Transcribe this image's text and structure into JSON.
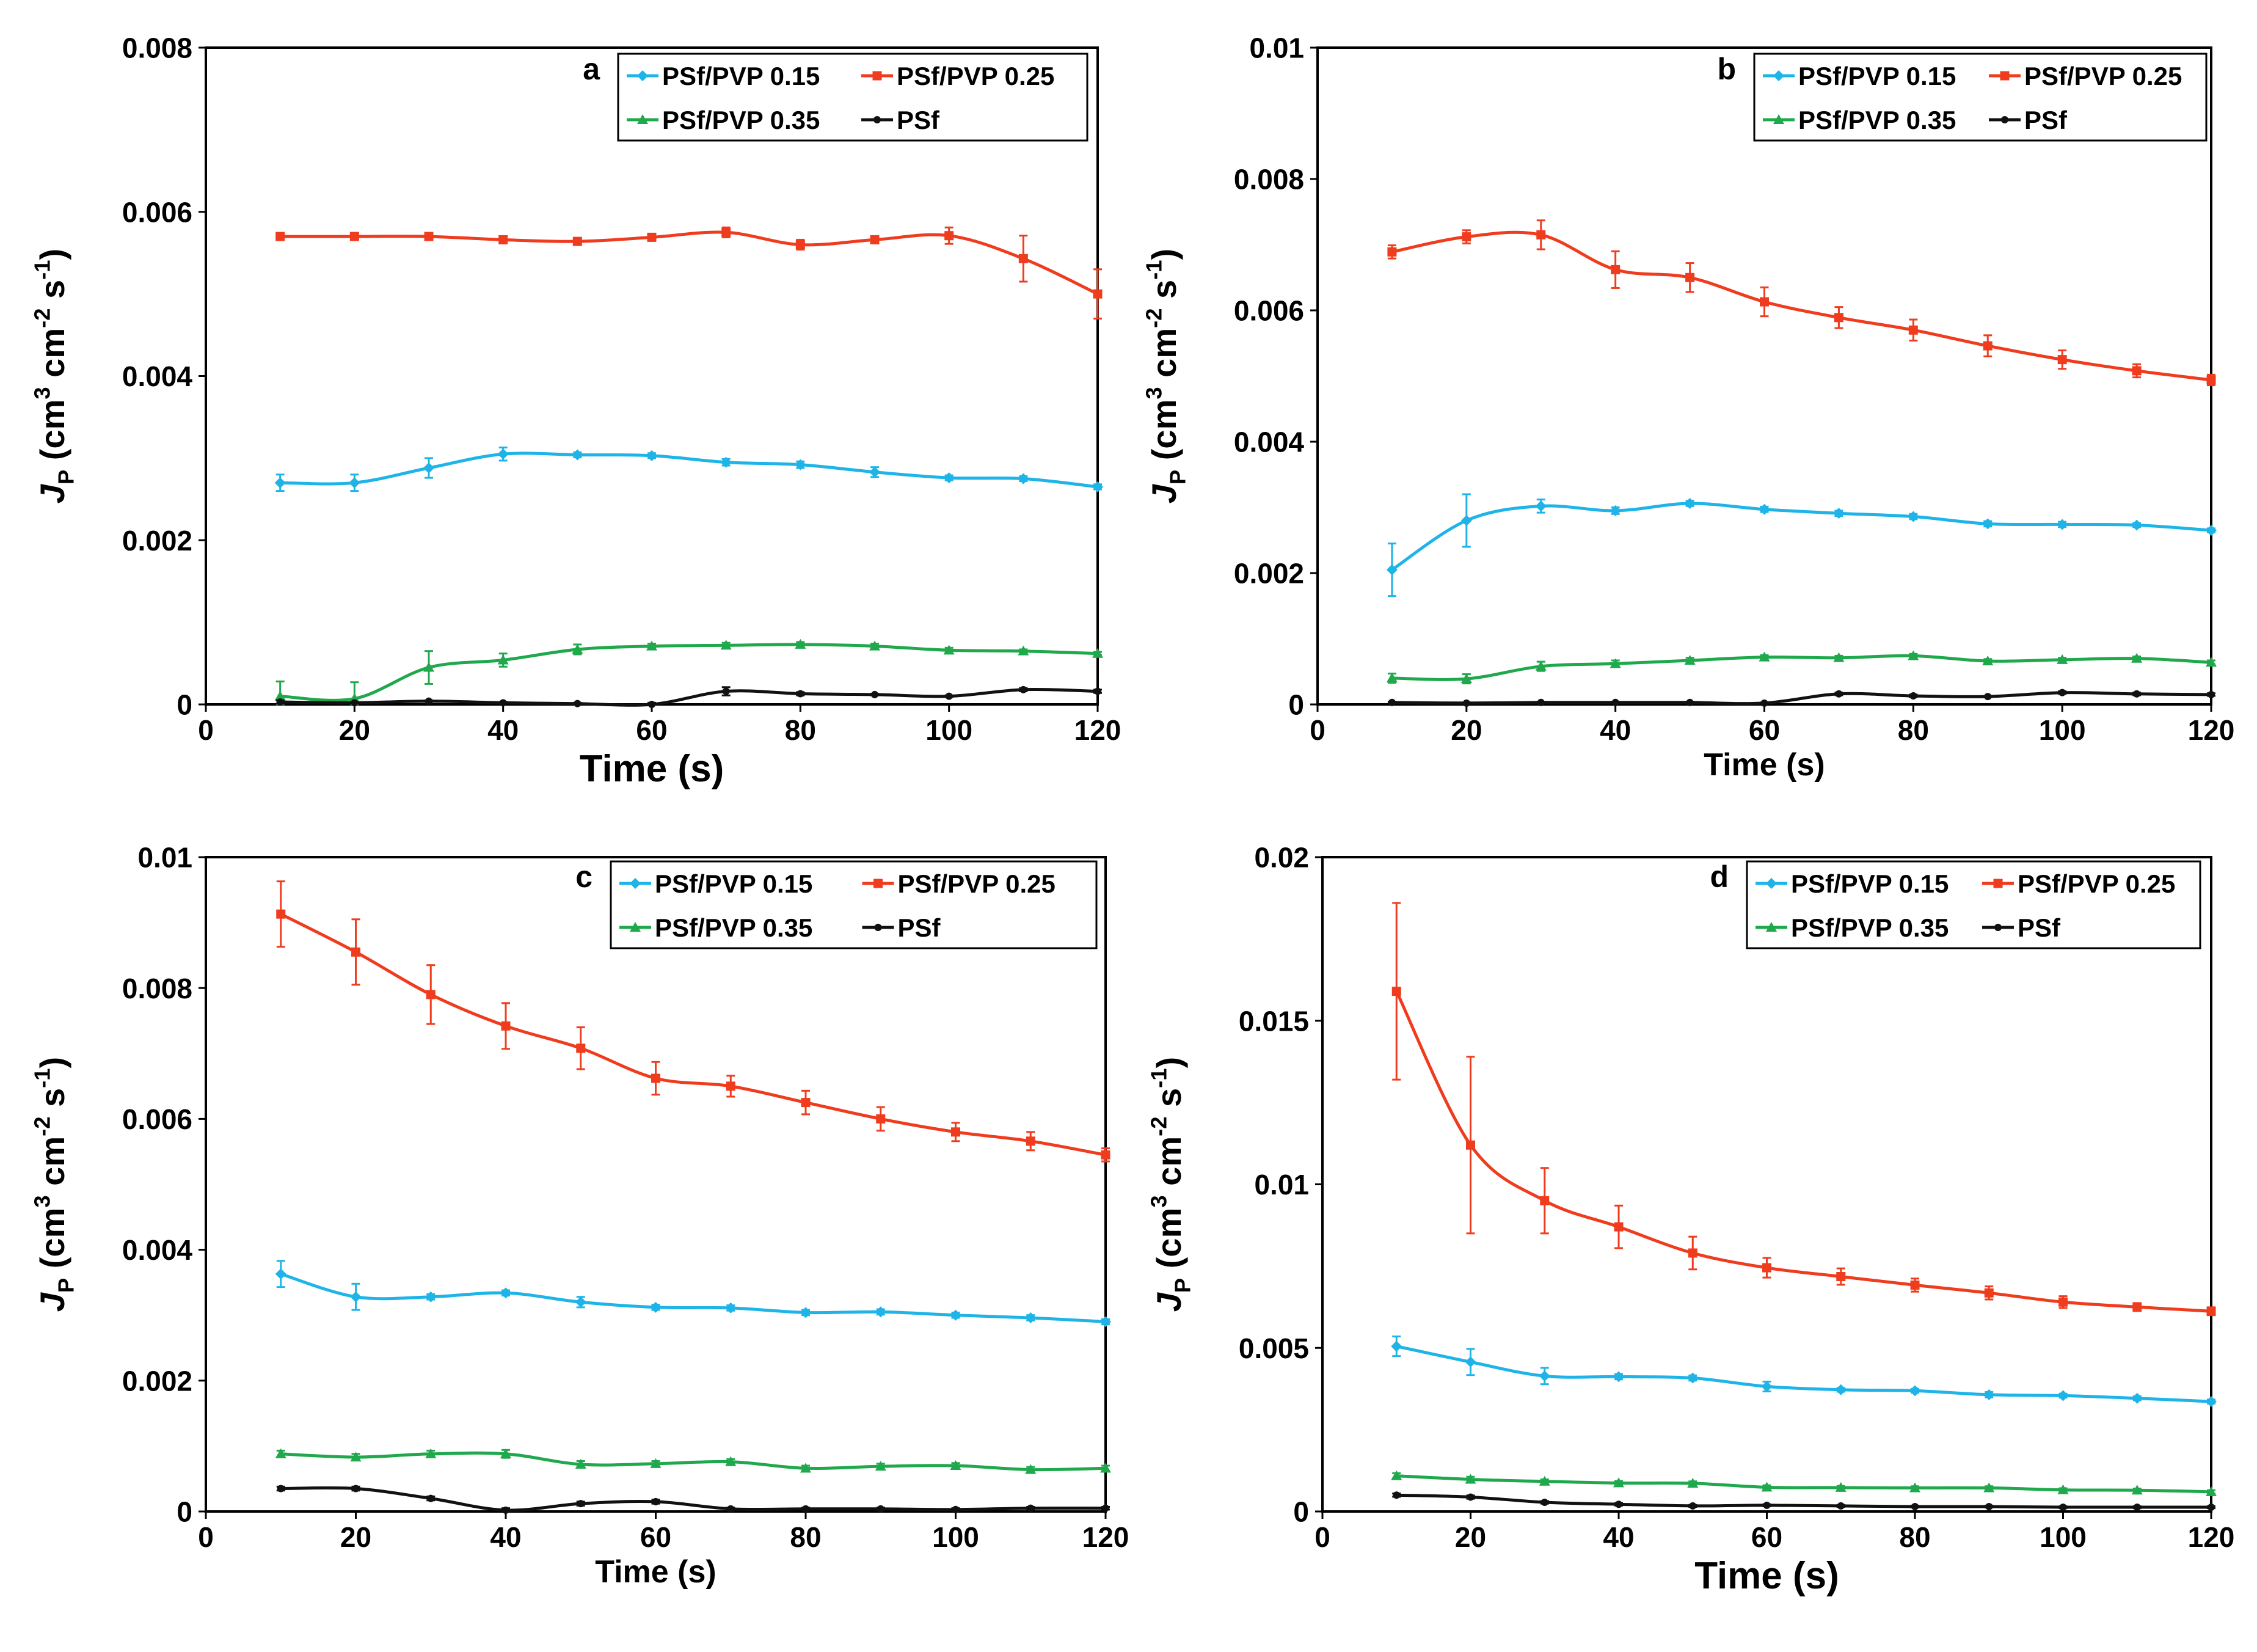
{
  "figure": {
    "panels": [
      {
        "panel_label": "a"
      },
      {
        "panel_label": "b"
      },
      {
        "panel_label": "c"
      },
      {
        "panel_label": "d"
      }
    ]
  },
  "colors": {
    "PSf/PVP 0.15": "#1eb4e8",
    "PSf/PVP 0.25": "#f03c1e",
    "PSf/PVP 0.35": "#20a84c",
    "PSf": "#111111"
  },
  "chart_data": [
    {
      "type": "line",
      "panel_label": "a",
      "xlabel": "Time (s)",
      "ylabel": "J_P (cm^3 cm^-2 s^-1)",
      "xlim": [
        0,
        120
      ],
      "ylim": [
        0,
        0.008
      ],
      "xticks": [
        "0",
        "20",
        "40",
        "60",
        "80",
        "100",
        "120"
      ],
      "yticks": [
        "0",
        "0.002",
        "0.004",
        "0.006",
        "0.008"
      ],
      "legend": [
        "PSf/PVP 0.15",
        "PSf/PVP 0.25",
        "PSf/PVP 0.35",
        "PSf"
      ],
      "legend_position": "top-right",
      "grid": false,
      "x": [
        10,
        20,
        30,
        40,
        50,
        60,
        70,
        80,
        90,
        100,
        110,
        120
      ],
      "series": [
        {
          "name": "PSf/PVP 0.15",
          "values": [
            0.0027,
            0.0027,
            0.00288,
            0.00305,
            0.00304,
            0.00303,
            0.00295,
            0.00292,
            0.00283,
            0.00276,
            0.00275,
            0.00265
          ],
          "errors": [
            0.0001,
            0.0001,
            0.00012,
            8e-05,
            3e-05,
            3e-05,
            4e-05,
            4e-05,
            6e-05,
            3e-05,
            3e-05,
            3e-05
          ]
        },
        {
          "name": "PSf/PVP 0.25",
          "values": [
            0.0057,
            0.0057,
            0.0057,
            0.00566,
            0.00564,
            0.00569,
            0.00575,
            0.0056,
            0.00566,
            0.00571,
            0.00543,
            0.005
          ],
          "errors": [
            3e-05,
            3e-05,
            3e-05,
            3e-05,
            3e-05,
            4e-05,
            6e-05,
            6e-05,
            3e-05,
            0.0001,
            0.00028,
            0.0003
          ]
        },
        {
          "name": "PSf/PVP 0.35",
          "values": [
            0.0001,
            7e-05,
            0.00045,
            0.00054,
            0.00067,
            0.00071,
            0.00072,
            0.00073,
            0.00071,
            0.00066,
            0.00065,
            0.00062
          ],
          "errors": [
            0.00018,
            0.0002,
            0.0002,
            8e-05,
            6e-05,
            3e-05,
            3e-05,
            3e-05,
            3e-05,
            3e-05,
            2e-05,
            2e-05
          ]
        },
        {
          "name": "PSf",
          "values": [
            3e-05,
            2e-05,
            4e-05,
            2e-05,
            1e-05,
            0.0,
            0.00016,
            0.00013,
            0.00012,
            0.0001,
            0.00018,
            0.00016
          ],
          "errors": [
            2e-05,
            1e-05,
            1e-05,
            1e-05,
            1e-05,
            2e-05,
            5e-05,
            2e-05,
            1e-05,
            1e-05,
            2e-05,
            2e-05
          ]
        }
      ]
    },
    {
      "type": "line",
      "panel_label": "b",
      "xlabel": "Time (s)",
      "ylabel": "J_P (cm^3 cm^-2 s^-1)",
      "xlim": [
        0,
        120
      ],
      "ylim": [
        0,
        0.01
      ],
      "xticks": [
        "0",
        "20",
        "40",
        "60",
        "80",
        "100",
        "120"
      ],
      "yticks": [
        "0",
        "0.002",
        "0.004",
        "0.006",
        "0.008",
        "0.01"
      ],
      "legend": [
        "PSf/PVP 0.15",
        "PSf/PVP 0.25",
        "PSf/PVP 0.35",
        "PSf"
      ],
      "legend_position": "top-right",
      "grid": false,
      "x": [
        10,
        20,
        30,
        40,
        50,
        60,
        70,
        80,
        90,
        100,
        110,
        120
      ],
      "series": [
        {
          "name": "PSf/PVP 0.15",
          "values": [
            0.00205,
            0.0028,
            0.00302,
            0.00295,
            0.00306,
            0.00297,
            0.00291,
            0.00286,
            0.00275,
            0.00274,
            0.00273,
            0.00265
          ],
          "errors": [
            0.0004,
            0.0004,
            0.0001,
            5e-05,
            4e-05,
            4e-05,
            4e-05,
            4e-05,
            4e-05,
            4e-05,
            3e-05,
            3e-05
          ]
        },
        {
          "name": "PSf/PVP 0.25",
          "values": [
            0.00689,
            0.00712,
            0.00715,
            0.00662,
            0.0065,
            0.00613,
            0.00589,
            0.0057,
            0.00546,
            0.00525,
            0.00508,
            0.00494
          ],
          "errors": [
            0.0001,
            0.0001,
            0.00022,
            0.00028,
            0.00022,
            0.00022,
            0.00016,
            0.00016,
            0.00016,
            0.00014,
            0.0001,
            8e-05
          ]
        },
        {
          "name": "PSf/PVP 0.35",
          "values": [
            0.0004,
            0.00039,
            0.00058,
            0.00062,
            0.00067,
            0.00072,
            0.00071,
            0.00074,
            0.00066,
            0.00068,
            0.0007,
            0.00064
          ],
          "errors": [
            7e-05,
            7e-05,
            7e-05,
            5e-05,
            4e-05,
            3e-05,
            3e-05,
            3e-05,
            3e-05,
            3e-05,
            3e-05,
            3e-05
          ]
        },
        {
          "name": "PSf",
          "values": [
            3e-05,
            2e-05,
            3e-05,
            3e-05,
            3e-05,
            2e-05,
            0.00016,
            0.00013,
            0.00012,
            0.00018,
            0.00016,
            0.00015
          ],
          "errors": [
            1e-05,
            1e-05,
            1e-05,
            1e-05,
            1e-05,
            1e-05,
            2e-05,
            2e-05,
            1e-05,
            2e-05,
            2e-05,
            2e-05
          ]
        }
      ]
    },
    {
      "type": "line",
      "panel_label": "c",
      "xlabel": "Time (s)",
      "ylabel": "J_P (cm^3 cm^-2 s^-1)",
      "xlim": [
        0,
        120
      ],
      "ylim": [
        0,
        0.01
      ],
      "xticks": [
        "0",
        "20",
        "40",
        "60",
        "80",
        "100",
        "120"
      ],
      "yticks": [
        "0",
        "0.002",
        "0.004",
        "0.006",
        "0.008",
        "0.01"
      ],
      "legend": [
        "PSf/PVP 0.15",
        "PSf/PVP 0.25",
        "PSf/PVP 0.35",
        "PSf"
      ],
      "legend_position": "top-right",
      "grid": false,
      "x": [
        10,
        20,
        30,
        40,
        50,
        60,
        70,
        80,
        90,
        100,
        110,
        120
      ],
      "series": [
        {
          "name": "PSf/PVP 0.15",
          "values": [
            0.00363,
            0.00328,
            0.00328,
            0.00334,
            0.0032,
            0.00312,
            0.00311,
            0.00304,
            0.00305,
            0.003,
            0.00296,
            0.0029
          ],
          "errors": [
            0.0002,
            0.0002,
            4e-05,
            4e-05,
            8e-05,
            4e-05,
            4e-05,
            4e-05,
            4e-05,
            4e-05,
            4e-05,
            4e-05
          ]
        },
        {
          "name": "PSf/PVP 0.25",
          "values": [
            0.00913,
            0.00855,
            0.0079,
            0.00742,
            0.00708,
            0.00662,
            0.0065,
            0.00625,
            0.006,
            0.0058,
            0.00566,
            0.00545
          ],
          "errors": [
            0.0005,
            0.0005,
            0.00045,
            0.00035,
            0.00032,
            0.00025,
            0.00016,
            0.00018,
            0.00018,
            0.00014,
            0.00014,
            0.0001
          ]
        },
        {
          "name": "PSf/PVP 0.35",
          "values": [
            0.00088,
            0.00083,
            0.00088,
            0.00088,
            0.00072,
            0.00073,
            0.00076,
            0.00066,
            0.00069,
            0.0007,
            0.00064,
            0.00066
          ],
          "errors": [
            5e-05,
            5e-05,
            5e-05,
            6e-05,
            5e-05,
            4e-05,
            4e-05,
            4e-05,
            4e-05,
            4e-05,
            4e-05,
            4e-05
          ]
        },
        {
          "name": "PSf",
          "values": [
            0.00035,
            0.00035,
            0.0002,
            2e-05,
            0.00012,
            0.00015,
            4e-05,
            4e-05,
            4e-05,
            3e-05,
            5e-05,
            5e-05
          ],
          "errors": [
            3e-05,
            3e-05,
            3e-05,
            3e-05,
            3e-05,
            3e-05,
            2e-05,
            2e-05,
            2e-05,
            2e-05,
            2e-05,
            2e-05
          ]
        }
      ]
    },
    {
      "type": "line",
      "panel_label": "d",
      "xlabel": "Time (s)",
      "ylabel": "J_P (cm^3 cm^-2 s^-1)",
      "xlim": [
        0,
        120
      ],
      "ylim": [
        0,
        0.02
      ],
      "xticks": [
        "0",
        "20",
        "40",
        "60",
        "80",
        "100",
        "120"
      ],
      "yticks": [
        "0",
        "0.005",
        "0.01",
        "0.015",
        "0.02"
      ],
      "legend": [
        "PSf/PVP 0.15",
        "PSf/PVP 0.25",
        "PSf/PVP 0.35",
        "PSf"
      ],
      "legend_position": "top-right",
      "grid": false,
      "x": [
        10,
        20,
        30,
        40,
        50,
        60,
        70,
        80,
        90,
        100,
        110,
        120
      ],
      "series": [
        {
          "name": "PSf/PVP 0.15",
          "values": [
            0.00505,
            0.00457,
            0.00414,
            0.00412,
            0.00408,
            0.00382,
            0.00372,
            0.00369,
            0.00357,
            0.00354,
            0.00346,
            0.00336
          ],
          "errors": [
            0.0003,
            0.0004,
            0.00025,
            8e-05,
            8e-05,
            0.00015,
            6e-05,
            6e-05,
            8e-05,
            6e-05,
            6e-05,
            6e-05
          ]
        },
        {
          "name": "PSf/PVP 0.25",
          "values": [
            0.0159,
            0.0112,
            0.0095,
            0.0087,
            0.0079,
            0.00745,
            0.00718,
            0.00692,
            0.00668,
            0.0064,
            0.00625,
            0.00612
          ],
          "errors": [
            0.0027,
            0.0027,
            0.001,
            0.00065,
            0.0005,
            0.0003,
            0.00025,
            0.0002,
            0.0002,
            0.00018,
            0.00012,
            0.00012
          ]
        },
        {
          "name": "PSf/PVP 0.35",
          "values": [
            0.00109,
            0.00098,
            0.00092,
            0.00087,
            0.00086,
            0.00074,
            0.00073,
            0.00072,
            0.00072,
            0.00066,
            0.00065,
            0.0006
          ],
          "errors": [
            8e-05,
            8e-05,
            6e-05,
            6e-05,
            6e-05,
            6e-05,
            5e-05,
            5e-05,
            5e-05,
            5e-05,
            5e-05,
            5e-05
          ]
        },
        {
          "name": "PSf",
          "values": [
            0.0005,
            0.00044,
            0.00028,
            0.00022,
            0.00017,
            0.00019,
            0.00017,
            0.00015,
            0.00015,
            0.00013,
            0.00013,
            0.00013
          ],
          "errors": [
            5e-05,
            5e-05,
            4e-05,
            4e-05,
            3e-05,
            3e-05,
            3e-05,
            3e-05,
            3e-05,
            3e-05,
            3e-05,
            3e-05
          ]
        }
      ]
    }
  ]
}
